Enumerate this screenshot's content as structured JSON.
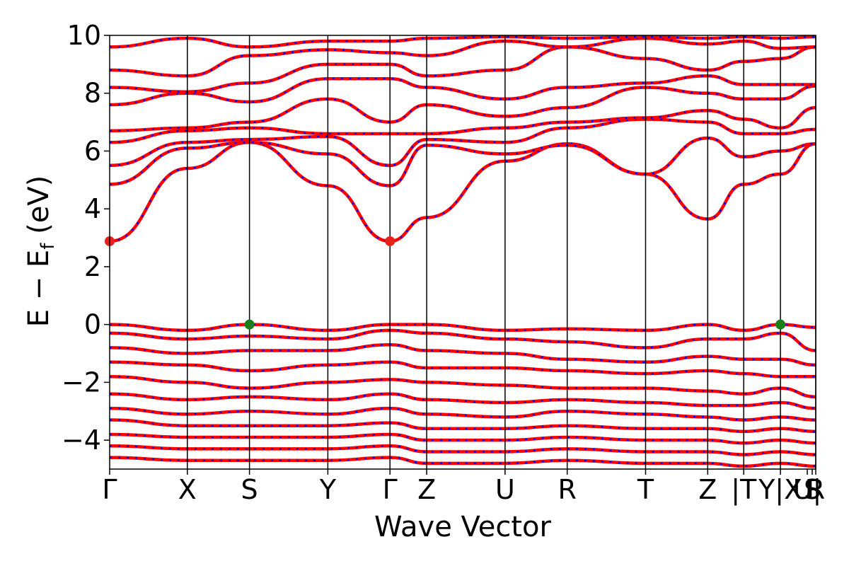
{
  "chart_data": {
    "type": "line",
    "xlabel": "Wave Vector",
    "ylabel": "E − E",
    "ylabel_sub": "f",
    "ylabel_unit": " (eV)",
    "ylim": [
      -5,
      10
    ],
    "yticks": [
      -4,
      -2,
      0,
      2,
      4,
      6,
      8,
      10
    ],
    "ytick_labels": [
      "−4",
      "−2",
      "0",
      "2",
      "4",
      "6",
      "8",
      "10"
    ],
    "xlim": [
      0,
      10
    ],
    "kpoints": [
      {
        "label": "Γ",
        "x": 0.0
      },
      {
        "label": "X",
        "x": 1.1
      },
      {
        "label": "S",
        "x": 1.98
      },
      {
        "label": "Y",
        "x": 3.09
      },
      {
        "label": "Γ",
        "x": 3.97
      },
      {
        "label": "Z",
        "x": 4.49
      },
      {
        "label": "U",
        "x": 5.6
      },
      {
        "label": "R",
        "x": 6.48
      },
      {
        "label": "T",
        "x": 7.59
      },
      {
        "label": "Z",
        "x": 8.47
      },
      {
        "label": "|T",
        "x": 8.98
      },
      {
        "label": "Y|X",
        "x": 9.5
      },
      {
        "label": "U|",
        "x": 9.88
      },
      {
        "label": "S",
        "x": 9.95
      },
      {
        "label": "R",
        "x": 10.0
      }
    ],
    "kpoint_lines": [
      1.1,
      1.98,
      3.09,
      3.97,
      4.49,
      5.6,
      6.48,
      7.59,
      8.47,
      8.98,
      9.5,
      10.0
    ],
    "highlight_points": [
      {
        "x": 0.0,
        "y": 2.88,
        "color": "#e8211b",
        "kind": "cbm"
      },
      {
        "x": 3.97,
        "y": 2.88,
        "color": "#e8211b",
        "kind": "cbm"
      },
      {
        "x": 1.98,
        "y": 0.0,
        "color": "#1a7f1a",
        "kind": "vbm"
      },
      {
        "x": 9.5,
        "y": 0.0,
        "color": "#1a7f1a",
        "kind": "vbm"
      }
    ],
    "series": [
      {
        "color": "#ff0000",
        "dash": "none"
      },
      {
        "color": "#0000ff",
        "dash": "dotted"
      }
    ],
    "bands": [
      {
        "x": [
          0,
          1.1,
          1.98,
          3.09,
          3.97,
          4.49,
          5.6,
          6.48,
          7.59,
          8.47,
          8.98,
          9.5,
          10.0
        ],
        "y": [
          2.88,
          5.4,
          6.3,
          4.8,
          2.88,
          3.7,
          5.65,
          6.25,
          5.2,
          3.65,
          4.85,
          5.2,
          6.25
        ]
      },
      {
        "x": [
          0,
          1.1,
          1.98,
          3.09,
          3.97,
          4.49,
          5.6,
          6.48,
          7.59,
          8.47,
          8.98,
          9.5,
          10.0
        ],
        "y": [
          4.85,
          6.1,
          6.3,
          5.9,
          4.8,
          6.2,
          5.9,
          6.2,
          5.2,
          6.45,
          5.8,
          6.0,
          6.25
        ]
      },
      {
        "x": [
          0,
          1.1,
          1.98,
          3.09,
          3.97,
          4.49,
          5.6,
          6.48,
          7.59,
          8.47,
          8.98,
          9.5,
          10.0
        ],
        "y": [
          5.5,
          6.3,
          6.4,
          6.5,
          5.5,
          6.4,
          6.3,
          6.8,
          7.1,
          7.0,
          6.6,
          6.6,
          6.75
        ]
      },
      {
        "x": [
          0,
          1.1,
          1.98,
          3.09,
          3.97,
          4.49,
          5.6,
          6.48,
          7.59,
          8.47,
          8.98,
          9.5,
          10.0
        ],
        "y": [
          6.3,
          6.7,
          6.8,
          6.6,
          6.6,
          6.6,
          6.8,
          7.0,
          7.15,
          7.4,
          7.1,
          6.8,
          7.5
        ]
      },
      {
        "x": [
          0,
          1.1,
          1.98,
          3.09,
          3.97,
          4.49,
          5.6,
          6.48,
          7.59,
          8.47,
          8.98,
          9.5,
          10.0
        ],
        "y": [
          6.7,
          6.8,
          7.0,
          7.8,
          7.0,
          7.6,
          7.2,
          7.5,
          8.2,
          8.0,
          7.8,
          7.8,
          8.25
        ]
      },
      {
        "x": [
          0,
          1.1,
          1.98,
          3.09,
          3.97,
          4.49,
          5.6,
          6.48,
          7.59,
          8.47,
          8.98,
          9.5,
          10.0
        ],
        "y": [
          7.6,
          8.0,
          7.7,
          8.5,
          8.5,
          8.2,
          7.8,
          8.2,
          8.35,
          8.6,
          8.3,
          8.3,
          8.3
        ]
      },
      {
        "x": [
          0,
          1.1,
          1.98,
          3.09,
          3.97,
          4.49,
          5.6,
          6.48,
          7.59,
          8.47,
          8.98,
          9.5,
          10.0
        ],
        "y": [
          8.2,
          8.05,
          8.35,
          9.0,
          9.0,
          8.6,
          8.8,
          9.6,
          9.2,
          8.8,
          9.1,
          9.2,
          9.6
        ]
      },
      {
        "x": [
          0,
          1.1,
          1.98,
          3.09,
          3.97,
          4.49,
          5.6,
          6.48,
          7.59,
          8.47,
          8.98,
          9.5,
          10.0
        ],
        "y": [
          8.8,
          8.6,
          9.3,
          9.5,
          9.4,
          9.3,
          9.8,
          9.6,
          9.9,
          9.7,
          9.8,
          9.55,
          9.6
        ]
      },
      {
        "x": [
          0,
          1.1,
          1.98,
          3.09,
          3.97,
          4.49,
          5.6,
          6.48,
          7.59,
          8.47,
          8.98,
          9.5,
          10.0
        ],
        "y": [
          9.6,
          9.9,
          9.6,
          9.8,
          9.8,
          9.9,
          9.95,
          9.9,
          9.95,
          9.9,
          9.95,
          9.9,
          9.95
        ]
      },
      {
        "x": [
          0,
          1.1,
          1.98,
          3.09,
          3.97,
          4.49,
          5.6,
          6.48,
          7.59,
          8.47,
          8.98,
          9.5,
          10.0
        ],
        "y": [
          0.0,
          -0.2,
          0.0,
          -0.2,
          0.0,
          0.0,
          -0.2,
          -0.15,
          -0.2,
          0.0,
          -0.2,
          0.0,
          -0.1
        ]
      },
      {
        "x": [
          0,
          1.1,
          1.98,
          3.09,
          3.97,
          4.49,
          5.6,
          6.48,
          7.59,
          8.47,
          8.98,
          9.5,
          10.0
        ],
        "y": [
          -0.3,
          -0.5,
          -0.4,
          -0.5,
          -0.2,
          -0.3,
          -0.5,
          -0.6,
          -0.8,
          -0.5,
          -0.5,
          -0.3,
          -0.9
        ]
      },
      {
        "x": [
          0,
          1.1,
          1.98,
          3.09,
          3.97,
          4.49,
          5.6,
          6.48,
          7.59,
          8.47,
          8.98,
          9.5,
          10.0
        ],
        "y": [
          -0.8,
          -1.0,
          -0.9,
          -0.9,
          -0.7,
          -0.9,
          -1.0,
          -1.2,
          -1.3,
          -1.1,
          -1.2,
          -1.2,
          -1.4
        ]
      },
      {
        "x": [
          0,
          1.1,
          1.98,
          3.09,
          3.97,
          4.49,
          5.6,
          6.48,
          7.59,
          8.47,
          8.98,
          9.5,
          10.0
        ],
        "y": [
          -1.3,
          -1.4,
          -1.6,
          -1.4,
          -1.3,
          -1.5,
          -1.5,
          -1.6,
          -1.7,
          -1.6,
          -1.7,
          -1.8,
          -1.8
        ]
      },
      {
        "x": [
          0,
          1.1,
          1.98,
          3.09,
          3.97,
          4.49,
          5.6,
          6.48,
          7.59,
          8.47,
          8.98,
          9.5,
          10.0
        ],
        "y": [
          -1.8,
          -2.0,
          -2.2,
          -2.0,
          -1.9,
          -2.0,
          -2.1,
          -2.2,
          -2.2,
          -2.3,
          -2.4,
          -2.2,
          -2.5
        ]
      },
      {
        "x": [
          0,
          1.1,
          1.98,
          3.09,
          3.97,
          4.49,
          5.6,
          6.48,
          7.59,
          8.47,
          8.98,
          9.5,
          10.0
        ],
        "y": [
          -2.4,
          -2.6,
          -2.5,
          -2.6,
          -2.4,
          -2.6,
          -2.7,
          -2.6,
          -2.7,
          -2.8,
          -2.8,
          -2.7,
          -2.9
        ]
      },
      {
        "x": [
          0,
          1.1,
          1.98,
          3.09,
          3.97,
          4.49,
          5.6,
          6.48,
          7.59,
          8.47,
          8.98,
          9.5,
          10.0
        ],
        "y": [
          -2.9,
          -3.1,
          -3.0,
          -3.1,
          -2.9,
          -3.1,
          -3.2,
          -3.0,
          -3.1,
          -3.2,
          -3.3,
          -3.2,
          -3.3
        ]
      },
      {
        "x": [
          0,
          1.1,
          1.98,
          3.09,
          3.97,
          4.49,
          5.6,
          6.48,
          7.59,
          8.47,
          8.98,
          9.5,
          10.0
        ],
        "y": [
          -3.3,
          -3.5,
          -3.5,
          -3.5,
          -3.4,
          -3.6,
          -3.6,
          -3.5,
          -3.6,
          -3.6,
          -3.7,
          -3.6,
          -3.7
        ]
      },
      {
        "x": [
          0,
          1.1,
          1.98,
          3.09,
          3.97,
          4.49,
          5.6,
          6.48,
          7.59,
          8.47,
          8.98,
          9.5,
          10.0
        ],
        "y": [
          -3.8,
          -3.9,
          -3.9,
          -3.9,
          -3.8,
          -4.0,
          -4.0,
          -3.9,
          -4.0,
          -4.0,
          -4.1,
          -4.0,
          -4.1
        ]
      },
      {
        "x": [
          0,
          1.1,
          1.98,
          3.09,
          3.97,
          4.49,
          5.6,
          6.48,
          7.59,
          8.47,
          8.98,
          9.5,
          10.0
        ],
        "y": [
          -4.2,
          -4.3,
          -4.3,
          -4.3,
          -4.2,
          -4.4,
          -4.4,
          -4.3,
          -4.4,
          -4.4,
          -4.5,
          -4.4,
          -4.5
        ]
      },
      {
        "x": [
          0,
          1.1,
          1.98,
          3.09,
          3.97,
          4.49,
          5.6,
          6.48,
          7.59,
          8.47,
          8.98,
          9.5,
          10.0
        ],
        "y": [
          -4.6,
          -4.7,
          -4.7,
          -4.7,
          -4.6,
          -4.8,
          -4.8,
          -4.7,
          -4.8,
          -4.8,
          -4.9,
          -4.8,
          -4.9
        ]
      }
    ],
    "grid": false
  }
}
